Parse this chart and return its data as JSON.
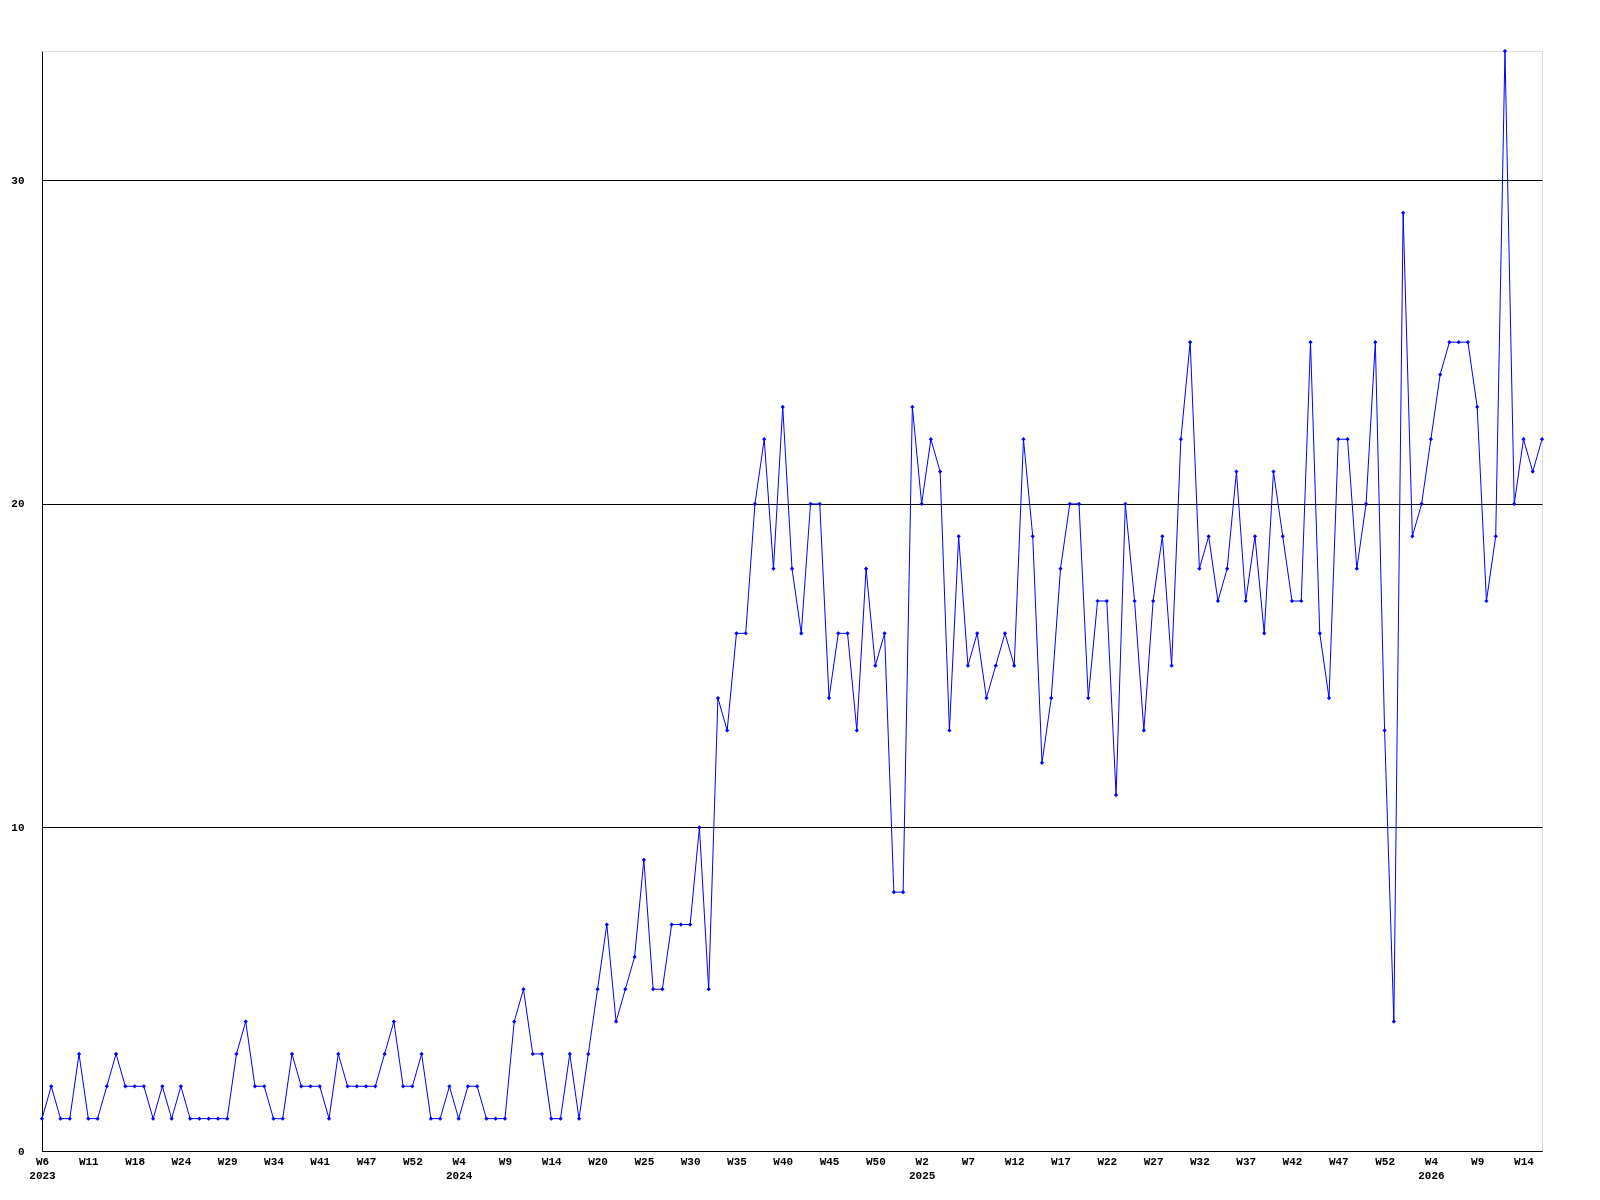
{
  "chart_data": {
    "type": "line",
    "categories": [
      "W6\n2023",
      null,
      null,
      null,
      null,
      "W11",
      null,
      null,
      null,
      null,
      "W18",
      null,
      null,
      null,
      null,
      "W24",
      null,
      null,
      null,
      null,
      "W29",
      null,
      null,
      null,
      null,
      "W34",
      null,
      null,
      null,
      null,
      "W41",
      null,
      null,
      null,
      null,
      "W47",
      null,
      null,
      null,
      null,
      "W52",
      null,
      null,
      null,
      null,
      "W4\n2024",
      null,
      null,
      null,
      null,
      "W9",
      null,
      null,
      null,
      null,
      "W14",
      null,
      null,
      null,
      null,
      "W20",
      null,
      null,
      null,
      null,
      "W25",
      null,
      null,
      null,
      null,
      "W30",
      null,
      null,
      null,
      null,
      "W35",
      null,
      null,
      null,
      null,
      "W40",
      null,
      null,
      null,
      null,
      "W45",
      null,
      null,
      null,
      null,
      "W50",
      null,
      null,
      null,
      null,
      "W2\n2025",
      null,
      null,
      null,
      null,
      "W7",
      null,
      null,
      null,
      null,
      "W12",
      null,
      null,
      null,
      null,
      "W17",
      null,
      null,
      null,
      null,
      "W22",
      null,
      null,
      null,
      null,
      "W27",
      null,
      null,
      null,
      null,
      "W32",
      null,
      null,
      null,
      null,
      "W37",
      null,
      null,
      null,
      null,
      "W42",
      null,
      null,
      null,
      null,
      "W47",
      null,
      null,
      null,
      null,
      "W52",
      null,
      null,
      null,
      null,
      "W4\n2026",
      null,
      null,
      null,
      null,
      "W9",
      null,
      null,
      null,
      null,
      "W14",
      null,
      null
    ],
    "series": [
      {
        "color": "#0000ff",
        "values": [
          1,
          2,
          1,
          1,
          3,
          1,
          1,
          2,
          3,
          2,
          2,
          2,
          1,
          2,
          1,
          2,
          1,
          1,
          1,
          1,
          1,
          3,
          4,
          2,
          2,
          1,
          1,
          3,
          2,
          2,
          2,
          1,
          3,
          2,
          2,
          2,
          2,
          3,
          4,
          2,
          2,
          3,
          1,
          1,
          2,
          1,
          2,
          2,
          1,
          1,
          1,
          4,
          5,
          3,
          3,
          1,
          1,
          3,
          1,
          3,
          5,
          7,
          4,
          5,
          6,
          9,
          5,
          5,
          7,
          7,
          7,
          10,
          5,
          14,
          13,
          16,
          16,
          20,
          22,
          18,
          23,
          18,
          16,
          20,
          20,
          14,
          16,
          16,
          13,
          18,
          15,
          16,
          8,
          8,
          23,
          20,
          22,
          21,
          13,
          19,
          15,
          16,
          14,
          15,
          16,
          15,
          22,
          19,
          12,
          14,
          18,
          20,
          20,
          14,
          17,
          17,
          11,
          20,
          17,
          13,
          17,
          19,
          15,
          22,
          25,
          18,
          19,
          17,
          18,
          21,
          17,
          19,
          16,
          21,
          19,
          17,
          17,
          25,
          16,
          14,
          22,
          22,
          18,
          20,
          25,
          13,
          4,
          29,
          19,
          20,
          22,
          24,
          25,
          25,
          25,
          23,
          17,
          19,
          34,
          20,
          22,
          21,
          22
        ]
      }
    ],
    "ylim": [
      0,
      34
    ],
    "yticks": [
      0,
      10,
      20,
      30
    ],
    "grid": "y",
    "marker": "diamond",
    "line_style": "solid"
  }
}
